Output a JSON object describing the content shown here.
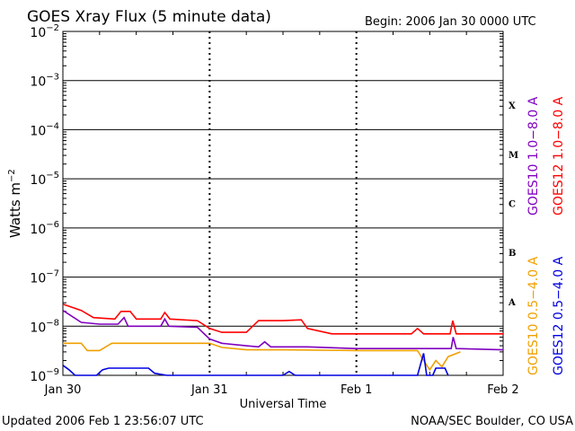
{
  "chart_data": {
    "type": "line",
    "title": "GOES Xray Flux (5 minute data)",
    "begin_label": "Begin:  2006 Jan 30 0000 UTC",
    "xlabel": "Universal Time",
    "ylabel_base": "Watts m",
    "ylabel_exp": "−2",
    "y_scale": "log",
    "ylim": [
      1e-09,
      0.01
    ],
    "y_ticks": [
      {
        "value": 0.01,
        "base": "10",
        "exp": "−2"
      },
      {
        "value": 0.001,
        "base": "10",
        "exp": "−3"
      },
      {
        "value": 0.0001,
        "base": "10",
        "exp": "−4"
      },
      {
        "value": 1e-05,
        "base": "10",
        "exp": "−5"
      },
      {
        "value": 1e-06,
        "base": "10",
        "exp": "−6"
      },
      {
        "value": 1e-07,
        "base": "10",
        "exp": "−7"
      },
      {
        "value": 1e-08,
        "base": "10",
        "exp": "−8"
      },
      {
        "value": 1e-09,
        "base": "10",
        "exp": "−9"
      }
    ],
    "xlim": [
      "2006-01-30 00:00",
      "2006-02-02 00:00"
    ],
    "x_ticks": [
      {
        "date": "2006-01-30 00:00",
        "label": "Jan 30"
      },
      {
        "date": "2006-01-31 00:00",
        "label": "Jan 31"
      },
      {
        "date": "2006-02-01 00:00",
        "label": "Feb 1"
      },
      {
        "date": "2006-02-02 00:00",
        "label": "Feb 2"
      }
    ],
    "flare_classes": [
      {
        "label": "X",
        "low": 0.0001,
        "high": 0.001
      },
      {
        "label": "M",
        "low": 1e-05,
        "high": 0.0001
      },
      {
        "label": "C",
        "low": 1e-06,
        "high": 1e-05
      },
      {
        "label": "B",
        "low": 1e-07,
        "high": 1e-06
      },
      {
        "label": "A",
        "low": 1e-08,
        "high": 1e-07
      }
    ],
    "grid": true,
    "series": [
      {
        "name": "GOES12 1.0−8.0 A",
        "color": "#ff0000",
        "points": [
          [
            "2006-01-30 00:00",
            2.8e-08
          ],
          [
            "2006-01-30 03:00",
            2.1e-08
          ],
          [
            "2006-01-30 05:00",
            1.5e-08
          ],
          [
            "2006-01-30 08:30",
            1.4e-08
          ],
          [
            "2006-01-30 09:30",
            2e-08
          ],
          [
            "2006-01-30 11:00",
            2e-08
          ],
          [
            "2006-01-30 12:00",
            1.4e-08
          ],
          [
            "2006-01-30 16:00",
            1.4e-08
          ],
          [
            "2006-01-30 16:40",
            1.9e-08
          ],
          [
            "2006-01-30 17:30",
            1.4e-08
          ],
          [
            "2006-01-30 22:00",
            1.3e-08
          ],
          [
            "2006-01-31 00:00",
            9e-09
          ],
          [
            "2006-01-31 02:00",
            7.5e-09
          ],
          [
            "2006-01-31 06:00",
            7.5e-09
          ],
          [
            "2006-01-31 08:00",
            1.3e-08
          ],
          [
            "2006-01-31 12:00",
            1.3e-08
          ],
          [
            "2006-01-31 15:00",
            1.35e-08
          ],
          [
            "2006-01-31 16:00",
            9e-09
          ],
          [
            "2006-01-31 20:00",
            7e-09
          ],
          [
            "2006-02-01 00:00",
            7e-09
          ],
          [
            "2006-02-01 09:00",
            7e-09
          ],
          [
            "2006-02-01 10:00",
            9e-09
          ],
          [
            "2006-02-01 11:00",
            7e-09
          ],
          [
            "2006-02-01 15:20",
            7e-09
          ],
          [
            "2006-02-01 15:45",
            1.3e-08
          ],
          [
            "2006-02-01 16:20",
            7e-09
          ],
          [
            "2006-02-02 00:00",
            7e-09
          ]
        ]
      },
      {
        "name": "GOES10 1.0−8.0 A",
        "color": "#8000c0",
        "points": [
          [
            "2006-01-30 00:00",
            2.1e-08
          ],
          [
            "2006-01-30 03:00",
            1.2e-08
          ],
          [
            "2006-01-30 06:00",
            1.1e-08
          ],
          [
            "2006-01-30 09:00",
            1.1e-08
          ],
          [
            "2006-01-30 10:00",
            1.5e-08
          ],
          [
            "2006-01-30 10:40",
            1e-08
          ],
          [
            "2006-01-30 16:00",
            1e-08
          ],
          [
            "2006-01-30 16:40",
            1.4e-08
          ],
          [
            "2006-01-30 17:20",
            1e-08
          ],
          [
            "2006-01-30 22:00",
            9.5e-09
          ],
          [
            "2006-01-31 00:00",
            5.5e-09
          ],
          [
            "2006-01-31 02:00",
            4.5e-09
          ],
          [
            "2006-01-31 06:00",
            4e-09
          ],
          [
            "2006-01-31 08:00",
            3.8e-09
          ],
          [
            "2006-01-31 09:00",
            4.8e-09
          ],
          [
            "2006-01-31 10:00",
            3.8e-09
          ],
          [
            "2006-01-31 16:00",
            3.8e-09
          ],
          [
            "2006-02-01 00:00",
            3.5e-09
          ],
          [
            "2006-02-01 15:30",
            3.5e-09
          ],
          [
            "2006-02-01 15:50",
            6e-09
          ],
          [
            "2006-02-01 16:20",
            3.5e-09
          ],
          [
            "2006-02-02 00:00",
            3.3e-09
          ]
        ]
      },
      {
        "name": "GOES10 0.5−4.0 A",
        "color": "#f0a000",
        "points": [
          [
            "2006-01-30 00:00",
            4.5e-09
          ],
          [
            "2006-01-30 03:00",
            4.5e-09
          ],
          [
            "2006-01-30 04:00",
            3.2e-09
          ],
          [
            "2006-01-30 06:00",
            3.2e-09
          ],
          [
            "2006-01-30 08:00",
            4.5e-09
          ],
          [
            "2006-01-30 12:00",
            4.5e-09
          ],
          [
            "2006-01-30 18:00",
            4.5e-09
          ],
          [
            "2006-01-30 22:00",
            4.5e-09
          ],
          [
            "2006-01-31 00:00",
            4.5e-09
          ],
          [
            "2006-01-31 02:00",
            3.7e-09
          ],
          [
            "2006-01-31 06:00",
            3.3e-09
          ],
          [
            "2006-01-31 12:00",
            3.3e-09
          ],
          [
            "2006-02-01 00:00",
            3.2e-09
          ],
          [
            "2006-02-01 10:00",
            3.2e-09
          ],
          [
            "2006-02-01 11:00",
            2e-09
          ],
          [
            "2006-02-01 12:00",
            1.3e-09
          ],
          [
            "2006-02-01 13:00",
            2e-09
          ],
          [
            "2006-02-01 14:00",
            1.5e-09
          ],
          [
            "2006-02-01 15:00",
            2.4e-09
          ],
          [
            "2006-02-01 17:00",
            3e-09
          ]
        ]
      },
      {
        "name": "GOES12 0.5−4.0 A",
        "color": "#0000e0",
        "points": [
          [
            "2006-01-30 00:00",
            1.6e-09
          ],
          [
            "2006-01-30 01:00",
            1.3e-09
          ],
          [
            "2006-01-30 02:00",
            1e-09
          ],
          [
            "2006-01-30 02:30",
            1e-09
          ],
          [
            "2006-01-30 05:30",
            1e-09
          ],
          [
            "2006-01-30 06:30",
            1.3e-09
          ],
          [
            "2006-01-30 07:30",
            1.4e-09
          ],
          [
            "2006-01-30 12:00",
            1.4e-09
          ],
          [
            "2006-01-30 14:00",
            1.4e-09
          ],
          [
            "2006-01-30 15:00",
            1.1e-09
          ],
          [
            "2006-01-30 17:00",
            1e-09
          ],
          [
            "2006-01-30 19:00",
            1e-09
          ],
          [
            "2006-01-30 21:00",
            1e-09
          ],
          [
            "2006-01-31 12:00",
            1e-09
          ],
          [
            "2006-01-31 13:00",
            1.2e-09
          ],
          [
            "2006-01-31 14:00",
            1e-09
          ],
          [
            "2006-02-01 10:00",
            1e-09
          ],
          [
            "2006-02-01 11:00",
            2.8e-09
          ],
          [
            "2006-02-01 11:30",
            1e-09
          ],
          [
            "2006-02-01 12:30",
            1e-09
          ],
          [
            "2006-02-01 13:00",
            1.4e-09
          ],
          [
            "2006-02-01 14:30",
            1.4e-09
          ],
          [
            "2006-02-01 15:00",
            1e-09
          ]
        ]
      }
    ]
  },
  "footer": {
    "updated": "Updated 2006 Feb  1 23:56:07 UTC",
    "source": "NOAA/SEC Boulder, CO USA"
  }
}
